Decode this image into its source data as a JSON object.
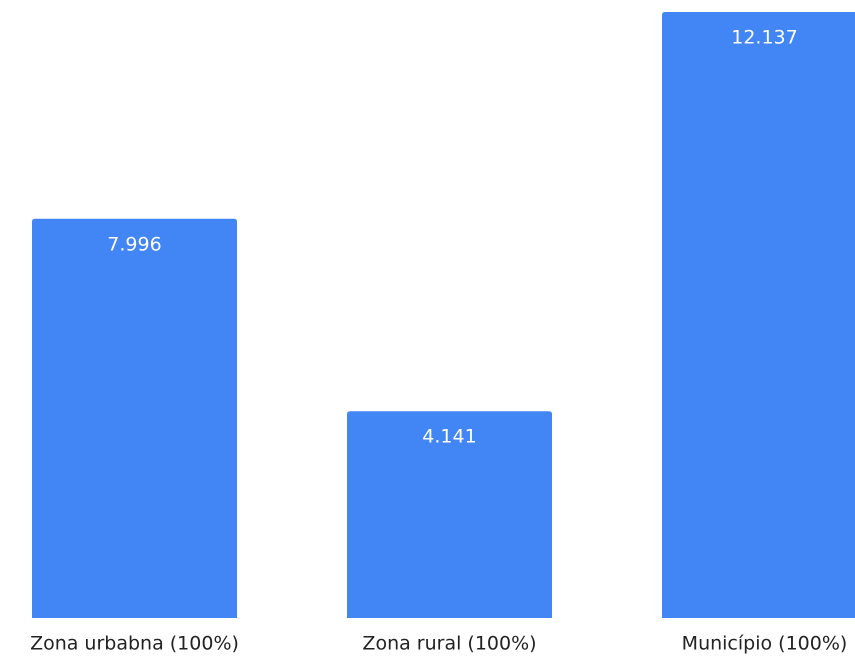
{
  "chart_data": {
    "type": "bar",
    "categories": [
      "Zona urbabna (100%)",
      "Zona rural (100%)",
      "Município (100%)"
    ],
    "values": [
      7996,
      4141,
      12137
    ],
    "value_labels": [
      "7.996",
      "4.141",
      "12.137"
    ],
    "color": "#4285f4"
  }
}
